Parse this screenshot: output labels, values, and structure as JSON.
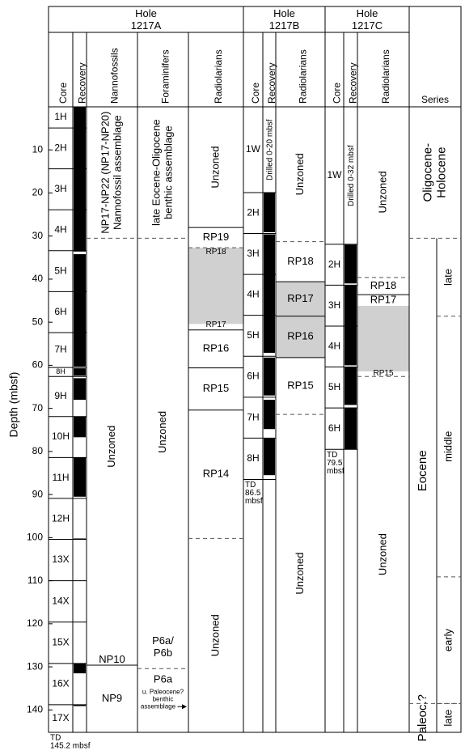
{
  "depth_axis": {
    "label": "Depth (mbsf)",
    "lim": [
      0,
      145.2
    ],
    "ticks": [
      10,
      20,
      30,
      40,
      50,
      60,
      70,
      80,
      90,
      100,
      110,
      120,
      130,
      140
    ]
  },
  "holes": [
    {
      "name": "Hole 1217A",
      "core_header": "Core",
      "recovery_header": "Recovery",
      "cores": [
        {
          "label": "1H",
          "top": 0,
          "base": 4.9
        },
        {
          "label": "2H",
          "top": 4.9,
          "base": 14.4
        },
        {
          "label": "3H",
          "top": 14.4,
          "base": 23.9
        },
        {
          "label": "4H",
          "top": 23.9,
          "base": 33.4
        },
        {
          "label": "5H",
          "top": 33.4,
          "base": 42.9
        },
        {
          "label": "6H",
          "top": 42.9,
          "base": 52.4
        },
        {
          "label": "7H",
          "top": 52.4,
          "base": 60.5
        },
        {
          "label": "8H",
          "top": 60.5,
          "base": 62.6
        },
        {
          "label": "9H",
          "top": 62.6,
          "base": 71.9
        },
        {
          "label": "10H",
          "top": 71.9,
          "base": 81.4
        },
        {
          "label": "11H",
          "top": 81.4,
          "base": 90.9
        },
        {
          "label": "12H",
          "top": 90.9,
          "base": 100.4
        },
        {
          "label": "13X",
          "top": 100.4,
          "base": 110
        },
        {
          "label": "14X",
          "top": 110,
          "base": 119.6
        },
        {
          "label": "15X",
          "top": 119.6,
          "base": 129.2
        },
        {
          "label": "16X",
          "top": 129.2,
          "base": 138.8
        },
        {
          "label": "17X",
          "top": 138.8,
          "base": 145.2
        }
      ],
      "recovery": [
        [
          0,
          33.6
        ],
        [
          34.2,
          60.3
        ],
        [
          60.7,
          62.4
        ],
        [
          63,
          68
        ],
        [
          71.9,
          76.7
        ],
        [
          81.4,
          90.5
        ],
        [
          100.2,
          100.5
        ],
        [
          129.2,
          131.5
        ],
        [
          138.8,
          139.1
        ]
      ],
      "td": [
        "TD",
        "145.2 mbsf"
      ],
      "zone_columns": [
        {
          "header": "Nannofossils",
          "shaded": [],
          "zones": [
            {
              "label": [
                "NP17-NP22 (NP17-NP20)",
                "Nannofossil assemblage"
              ],
              "top": 0,
              "base": 30.5,
              "rotated": true,
              "base_line": "dashed"
            },
            {
              "label": [
                "Unzoned"
              ],
              "top": 30.5,
              "base": 127.2,
              "rotated": true,
              "base_line": "none"
            },
            {
              "label": [
                "NP10"
              ],
              "top": 127.2,
              "base": 129.6
            },
            {
              "label": [
                "NP9"
              ],
              "top": 129.6,
              "base": 145.2,
              "base_line": "none"
            }
          ]
        },
        {
          "header": "Foraminifers",
          "shaded": [],
          "zones": [
            {
              "label": [
                "late Eocene-Oligocene",
                "benthic assemblage"
              ],
              "top": 0,
              "base": 30.5,
              "rotated": true,
              "base_line": "dashed"
            },
            {
              "label": [
                "Unzoned"
              ],
              "top": 30.5,
              "base": 120.5,
              "rotated": true,
              "base_line": "none"
            },
            {
              "label": [
                "P6a/",
                "P6b"
              ],
              "top": 120.5,
              "base": 130.4,
              "base_line": "dashed"
            },
            {
              "label": [
                "P6a"
              ],
              "top": 130.4,
              "base": 145.2,
              "base_line": "none",
              "note": [
                "u. Paleocene?",
                "benthic",
                "assemblage"
              ]
            }
          ]
        },
        {
          "header": "Radiolarians",
          "shaded": [
            [
              32.7,
              50.4
            ]
          ],
          "zones": [
            {
              "label": [
                "Unzoned"
              ],
              "top": 0,
              "base": 28,
              "rotated": true
            },
            {
              "label": [
                "RP19"
              ],
              "top": 28,
              "base": 32.7,
              "base_line": "dashed"
            },
            {
              "label": [
                "RP18"
              ],
              "top": 32.7,
              "base": 34.6,
              "small": true,
              "base_line": "none"
            },
            {
              "label": [
                "RP17"
              ],
              "top": 49.3,
              "base": 51.8,
              "small": true
            },
            {
              "label": [
                "RP16"
              ],
              "top": 51.8,
              "base": 60.6
            },
            {
              "label": [
                "RP15"
              ],
              "top": 60.6,
              "base": 70.4
            },
            {
              "label": [
                "RP14"
              ],
              "top": 70.4,
              "base": 100.2,
              "base_line": "dashed"
            },
            {
              "label": [
                "Unzoned"
              ],
              "top": 100.2,
              "base": 145.2,
              "rotated": true,
              "base_line": "none"
            }
          ]
        }
      ]
    },
    {
      "name": "Hole 1217B",
      "core_header": "Core",
      "recovery_header": "Recovery",
      "cores": [
        {
          "label": "1W",
          "top": 0,
          "base": 19.9
        },
        {
          "label": "2H",
          "top": 19.9,
          "base": 29.4
        },
        {
          "label": "3H",
          "top": 29.4,
          "base": 38.9
        },
        {
          "label": "4H",
          "top": 38.9,
          "base": 48.4
        },
        {
          "label": "5H",
          "top": 48.4,
          "base": 57.9
        },
        {
          "label": "6H",
          "top": 57.9,
          "base": 67.4
        },
        {
          "label": "7H",
          "top": 67.4,
          "base": 76.9
        },
        {
          "label": "8H",
          "top": 76.9,
          "base": 86.5
        }
      ],
      "recovery": [
        [
          20,
          29.1
        ],
        [
          29.6,
          57.1
        ],
        [
          58.2,
          67
        ],
        [
          68,
          74.8
        ],
        [
          77,
          85.5
        ]
      ],
      "drilled": {
        "label": "Drilled 0-20 mbsf",
        "top": 0,
        "base": 20
      },
      "td": [
        "TD",
        "86.5",
        "mbsf"
      ],
      "zone_columns": [
        {
          "header": "Radiolarians",
          "shaded": [
            [
              40.6,
              58.2
            ]
          ],
          "zones": [
            {
              "label": [
                "Unzoned"
              ],
              "top": 0,
              "base": 31.3,
              "rotated": true,
              "base_line": "dashed"
            },
            {
              "label": [
                "RP18"
              ],
              "top": 31.3,
              "base": 40.6
            },
            {
              "label": [
                "RP17"
              ],
              "top": 40.6,
              "base": 48.6
            },
            {
              "label": [
                "RP16"
              ],
              "top": 48.6,
              "base": 58.2
            },
            {
              "label": [
                "RP15"
              ],
              "top": 58.2,
              "base": 71.4,
              "base_line": "dashed"
            },
            {
              "label": [
                "Unzoned"
              ],
              "top": 71.4,
              "base": 145.2,
              "rotated": true,
              "base_line": "none"
            }
          ]
        }
      ]
    },
    {
      "name": "Hole 1217C",
      "core_header": "Core",
      "recovery_header": "Recovery",
      "cores": [
        {
          "label": "1W",
          "top": 0,
          "base": 31.9
        },
        {
          "label": "2H",
          "top": 31.9,
          "base": 41.4
        },
        {
          "label": "3H",
          "top": 41.4,
          "base": 50.9
        },
        {
          "label": "4H",
          "top": 50.9,
          "base": 60.4
        },
        {
          "label": "5H",
          "top": 60.4,
          "base": 69.9
        },
        {
          "label": "6H",
          "top": 69.9,
          "base": 79.5
        }
      ],
      "recovery": [
        [
          32,
          41
        ],
        [
          41.5,
          60
        ],
        [
          60.4,
          69.2
        ],
        [
          69.8,
          79.5
        ]
      ],
      "drilled": {
        "label": "Drilled 0-32 mbsf",
        "top": 0,
        "base": 32
      },
      "td": [
        "TD",
        "79.5",
        "mbsf"
      ],
      "zone_columns": [
        {
          "header": "Radiolarians",
          "shaded": [
            [
              46.2,
              61.4
            ]
          ],
          "zones": [
            {
              "label": [
                "Unzoned"
              ],
              "top": 0,
              "base": 39.6,
              "rotated": true,
              "base_line": "dashed"
            },
            {
              "label": [
                "RP18"
              ],
              "top": 39.6,
              "base": 43.6
            },
            {
              "label": [
                "RP17"
              ],
              "top": 43.6,
              "base": 46.2,
              "base_line": "none"
            },
            {
              "label": [
                "RP15"
              ],
              "top": 61.2,
              "base": 62.6,
              "small": true,
              "base_line": "dashed"
            },
            {
              "label": [
                "Unzoned"
              ],
              "top": 62.6,
              "base": 145.2,
              "rotated": true,
              "base_line": "none"
            }
          ]
        }
      ]
    }
  ],
  "series": {
    "header": "Series",
    "epochs": [
      {
        "label": [
          "Oligocene-",
          "Holocene"
        ],
        "top": 0,
        "base": 30.5,
        "full_width": true
      },
      {
        "label": [
          "Eocene"
        ],
        "top": 30.5,
        "base": 138.5
      },
      {
        "label": [
          "Paleoc.?"
        ],
        "top": 138.5,
        "base": 145.2
      }
    ],
    "subepochs": [
      {
        "label": "late",
        "top": 30.5,
        "base": 48.6
      },
      {
        "label": "middle",
        "top": 48.6,
        "base": 109.1
      },
      {
        "label": "early",
        "top": 109.1,
        "base": 138.5
      },
      {
        "label": "late",
        "top": 138.5,
        "base": 145.2
      }
    ]
  }
}
